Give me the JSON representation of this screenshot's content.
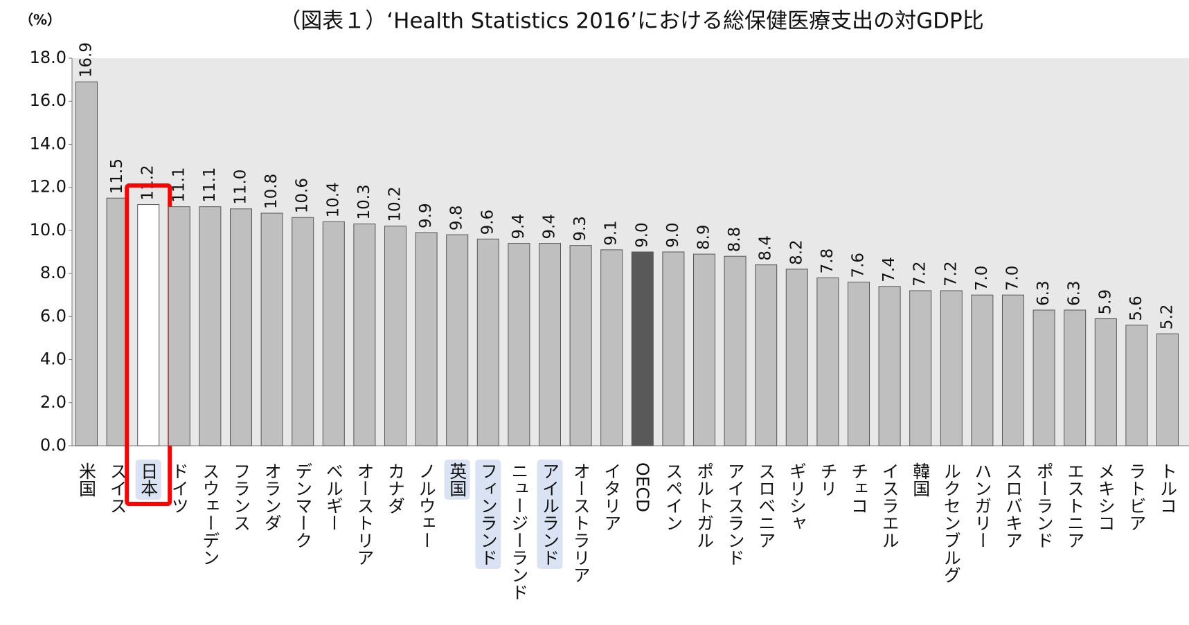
{
  "chart_data": {
    "type": "bar",
    "title": "（図表１）‘Health Statistics 2016’における総保健医療支出の対GDP比",
    "y_unit": "（%）",
    "categories": [
      "米国",
      "スイス",
      "日本",
      "ドイツ",
      "スウェーデン",
      "フランス",
      "オランダ",
      "デンマーク",
      "ベルギー",
      "オーストリア",
      "カナダ",
      "ノルウェー",
      "英国",
      "フィンランド",
      "ニュージーランド",
      "アイルランド",
      "オーストラリア",
      "イタリア",
      "OECD",
      "スペイン",
      "ポルトガル",
      "アイスランド",
      "スロベニア",
      "ギリシャ",
      "チリ",
      "チェコ",
      "イスラエル",
      "韓国",
      "ルクセンブルグ",
      "ハンガリー",
      "スロバキア",
      "ポーランド",
      "エストニア",
      "メキシコ",
      "ラトビア",
      "トルコ"
    ],
    "values": [
      16.9,
      11.5,
      11.2,
      11.1,
      11.1,
      11.0,
      10.8,
      10.6,
      10.4,
      10.3,
      10.2,
      9.9,
      9.8,
      9.6,
      9.4,
      9.4,
      9.3,
      9.1,
      9.0,
      9.0,
      8.9,
      8.8,
      8.4,
      8.2,
      7.8,
      7.6,
      7.4,
      7.2,
      7.2,
      7.0,
      7.0,
      6.3,
      6.3,
      5.9,
      5.6,
      5.2
    ],
    "value_labels": [
      "16.9",
      "11.5",
      "11.2",
      "11.1",
      "11.1",
      "11.0",
      "10.8",
      "10.6",
      "10.4",
      "10.3",
      "10.2",
      "9.9",
      "9.8",
      "9.6",
      "9.4",
      "9.4",
      "9.3",
      "9.1",
      "9.0",
      "9.0",
      "8.9",
      "8.8",
      "8.4",
      "8.2",
      "7.8",
      "7.6",
      "7.4",
      "7.2",
      "7.2",
      "7.0",
      "7.0",
      "6.3",
      "6.3",
      "5.9",
      "5.6",
      "5.2"
    ],
    "color": "#bfbfbf",
    "colors": {
      "2": "#ffffff",
      "18": "#595959"
    },
    "label_highlight": [
      false,
      false,
      true,
      false,
      false,
      false,
      false,
      false,
      false,
      false,
      false,
      false,
      true,
      true,
      false,
      true,
      false,
      false,
      false,
      false,
      false,
      false,
      false,
      false,
      false,
      false,
      false,
      false,
      false,
      false,
      false,
      false,
      false,
      false,
      false,
      false
    ],
    "red_box": [
      false,
      false,
      true,
      false,
      false,
      false,
      false,
      false,
      false,
      false,
      false,
      false,
      false,
      false,
      false,
      false,
      false,
      false,
      false,
      false,
      false,
      false,
      false,
      false,
      false,
      false,
      false,
      false,
      false,
      false,
      false,
      false,
      false,
      false,
      false,
      false
    ],
    "ylim": [
      0,
      18
    ],
    "yticks": [
      {
        "value": 0,
        "label": "0.0"
      },
      {
        "value": 2,
        "label": "2.0"
      },
      {
        "value": 4,
        "label": "4.0"
      },
      {
        "value": 6,
        "label": "6.0"
      },
      {
        "value": 8,
        "label": "8.0"
      },
      {
        "value": 10,
        "label": "10.0"
      },
      {
        "value": 12,
        "label": "12.0"
      },
      {
        "value": 14,
        "label": "14.0"
      },
      {
        "value": 16,
        "label": "16.0"
      },
      {
        "value": 18,
        "label": "18.0"
      }
    ]
  }
}
